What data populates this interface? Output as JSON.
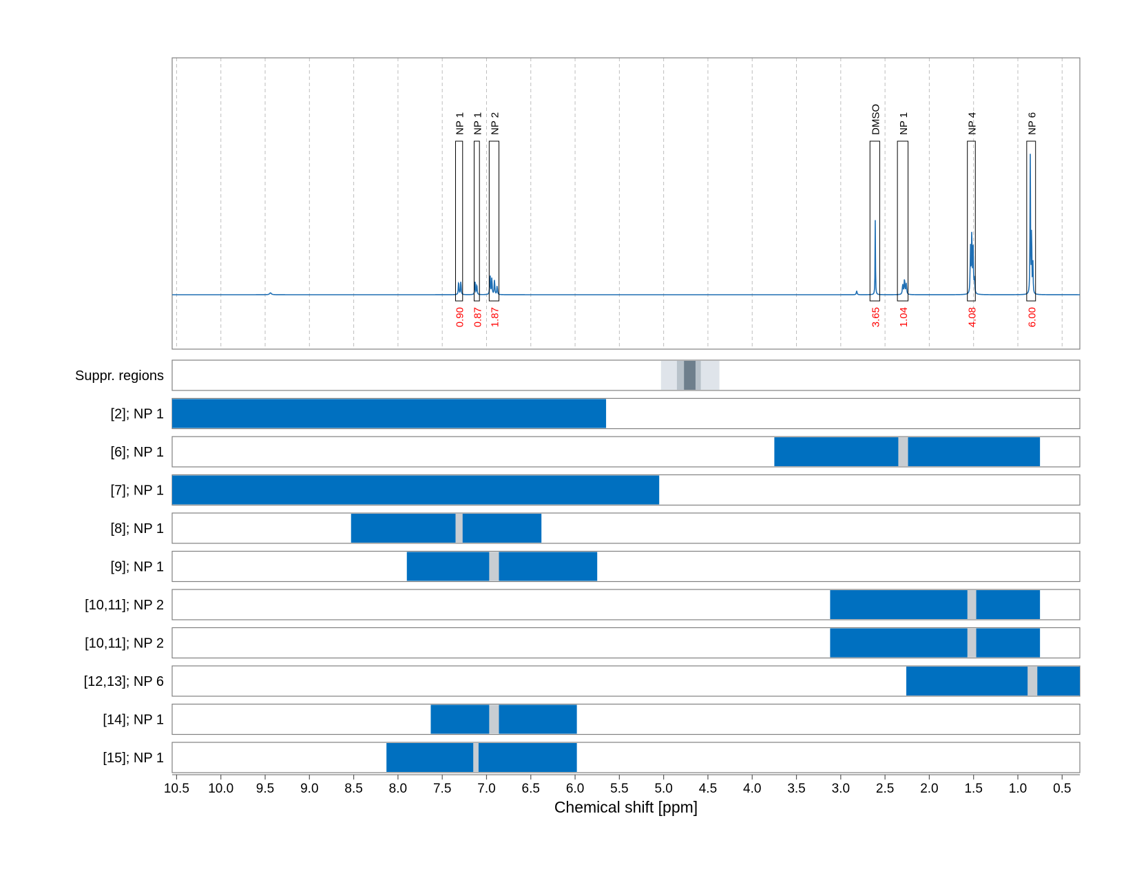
{
  "chart_data": {
    "type": "nmr-spectrum-with-range-bars",
    "xlabel": "Chemical shift [ppm]",
    "xlim": [
      10.55,
      0.3
    ],
    "x_ticks": [
      "10.5",
      "10.0",
      "9.5",
      "9.0",
      "8.5",
      "8.0",
      "7.5",
      "7.0",
      "6.5",
      "6.0",
      "5.5",
      "5.0",
      "4.5",
      "4.0",
      "3.5",
      "3.0",
      "2.5",
      "2.0",
      "1.5",
      "1.0",
      "0.5"
    ],
    "grid": true,
    "colors": {
      "spectrum": "#1f6fb4",
      "bar": "#0070c0",
      "gap": "#c8cdd2",
      "integral_label": "#ff0000",
      "frame": "#808080"
    },
    "spectrum_peaks": [
      {
        "ppm": 9.44,
        "height": 0.012,
        "width": 0.012
      },
      {
        "ppm": 7.315,
        "height": 0.09,
        "width": 0.004
      },
      {
        "ppm": 7.29,
        "height": 0.09,
        "width": 0.004
      },
      {
        "ppm": 7.13,
        "height": 0.085,
        "width": 0.004
      },
      {
        "ppm": 7.11,
        "height": 0.07,
        "width": 0.004
      },
      {
        "ppm": 6.96,
        "height": 0.14,
        "width": 0.004
      },
      {
        "ppm": 6.94,
        "height": 0.11,
        "width": 0.004
      },
      {
        "ppm": 6.91,
        "height": 0.1,
        "width": 0.004
      },
      {
        "ppm": 6.88,
        "height": 0.06,
        "width": 0.004
      },
      {
        "ppm": 2.82,
        "height": 0.025,
        "width": 0.005
      },
      {
        "ppm": 2.61,
        "height": 0.5,
        "width": 0.0025
      },
      {
        "ppm": 2.3,
        "height": 0.065,
        "width": 0.005
      },
      {
        "ppm": 2.28,
        "height": 0.1,
        "width": 0.005
      },
      {
        "ppm": 2.26,
        "height": 0.07,
        "width": 0.005
      },
      {
        "ppm": 1.535,
        "height": 0.3,
        "width": 0.004
      },
      {
        "ppm": 1.52,
        "height": 0.41,
        "width": 0.004
      },
      {
        "ppm": 1.505,
        "height": 0.29,
        "width": 0.004
      },
      {
        "ppm": 1.49,
        "height": 0.1,
        "width": 0.004
      },
      {
        "ppm": 0.86,
        "height": 0.91,
        "width": 0.003
      },
      {
        "ppm": 0.845,
        "height": 0.48,
        "width": 0.003
      },
      {
        "ppm": 0.83,
        "height": 0.2,
        "width": 0.003
      }
    ],
    "peak_regions": [
      {
        "label": "NP 1",
        "from": 7.35,
        "to": 7.27,
        "integral": "0.90"
      },
      {
        "label": "NP 1",
        "from": 7.14,
        "to": 7.08,
        "integral": "0.87"
      },
      {
        "label": "NP 2",
        "from": 6.97,
        "to": 6.86,
        "integral": "1.87"
      },
      {
        "label": "DMSO",
        "from": 2.67,
        "to": 2.56,
        "integral": "3.65"
      },
      {
        "label": "NP 1",
        "from": 2.36,
        "to": 2.24,
        "integral": "1.04"
      },
      {
        "label": "NP 4",
        "from": 1.57,
        "to": 1.48,
        "integral": "4.08"
      },
      {
        "label": "NP 6",
        "from": 0.9,
        "to": 0.8,
        "integral": "6.00"
      }
    ],
    "rows": [
      {
        "label": "Suppr. regions",
        "type": "suppression",
        "bands": [
          {
            "from": 5.03,
            "to": 4.37,
            "shade": "#dfe4ea"
          },
          {
            "from": 4.85,
            "to": 4.58,
            "shade": "#b8c2ca"
          },
          {
            "from": 4.77,
            "to": 4.64,
            "shade": "#6e7f8c"
          }
        ]
      },
      {
        "label": "[2]; NP 1",
        "from": 10.55,
        "to": 5.65,
        "gap": null
      },
      {
        "label": "[6]; NP 1",
        "from": 3.75,
        "to": 0.75,
        "gap": [
          2.35,
          2.24
        ]
      },
      {
        "label": "[7]; NP 1",
        "from": 10.55,
        "to": 5.05,
        "gap": null
      },
      {
        "label": "[8]; NP 1",
        "from": 8.53,
        "to": 6.38,
        "gap": [
          7.35,
          7.27
        ]
      },
      {
        "label": "[9]; NP 1",
        "from": 7.9,
        "to": 5.75,
        "gap": [
          6.97,
          6.86
        ]
      },
      {
        "label": "[10,11]; NP 2",
        "from": 3.12,
        "to": 0.75,
        "gap": [
          1.57,
          1.47
        ]
      },
      {
        "label": "[10,11]; NP 2",
        "from": 3.12,
        "to": 0.75,
        "gap": [
          1.57,
          1.47
        ]
      },
      {
        "label": "[12,13]; NP 6",
        "from": 2.26,
        "to": 0.3,
        "gap": [
          0.89,
          0.78
        ]
      },
      {
        "label": "[14]; NP 1",
        "from": 7.63,
        "to": 5.98,
        "gap": [
          6.97,
          6.86
        ]
      },
      {
        "label": "[15]; NP 1",
        "from": 8.13,
        "to": 5.98,
        "gap": [
          7.15,
          7.09
        ]
      }
    ]
  }
}
